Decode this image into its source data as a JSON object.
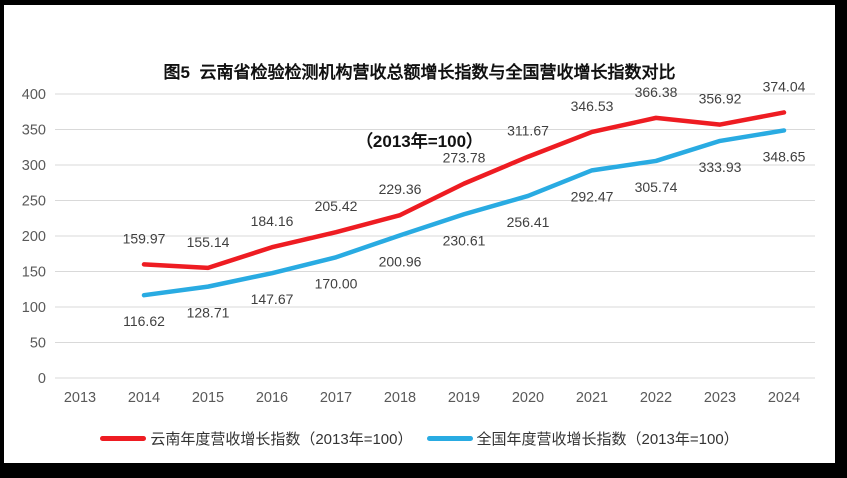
{
  "colors": {
    "yunnan_line": "#EE1C22",
    "national_line": "#29ABE2",
    "gridline": "#D9D9D9",
    "axis_text": "#595959",
    "data_label_text": "#404040",
    "title_text": "#111111",
    "frame": "#000000",
    "background": "#FFFFFF"
  },
  "chart_data": {
    "type": "line",
    "title": "图5  云南省检验检测机构营收总额增长指数与全国营收增长指数对比",
    "subtitle": "（2013年=100）",
    "categories": [
      "2013",
      "2014",
      "2015",
      "2016",
      "2017",
      "2018",
      "2019",
      "2020",
      "2021",
      "2022",
      "2023",
      "2024"
    ],
    "series": [
      {
        "name": "云南年度营收增长指数（2013年=100）",
        "color": "#EE1C22",
        "label_position": "above",
        "values": [
          null,
          159.97,
          155.14,
          184.16,
          205.42,
          229.36,
          273.78,
          311.67,
          346.53,
          366.38,
          356.92,
          374.04
        ],
        "labels": [
          null,
          "159.97",
          "155.14",
          "184.16",
          "205.42",
          "229.36",
          "273.78",
          "311.67",
          "346.53",
          "366.38",
          "356.92",
          "374.04"
        ]
      },
      {
        "name": "全国年度营收增长指数（2013年=100）",
        "color": "#29ABE2",
        "label_position": "below",
        "values": [
          null,
          116.62,
          128.71,
          147.67,
          170.0,
          200.96,
          230.61,
          256.41,
          292.47,
          305.74,
          333.93,
          348.65
        ],
        "labels": [
          null,
          "116.62",
          "128.71",
          "147.67",
          "170.00",
          "200.96",
          "230.61",
          "256.41",
          "292.47",
          "305.74",
          "333.93",
          "348.65"
        ]
      }
    ],
    "ylim": [
      0,
      400
    ],
    "yticks": [
      0,
      50,
      100,
      150,
      200,
      250,
      300,
      350,
      400
    ],
    "grid": true,
    "legend_position": "bottom"
  }
}
